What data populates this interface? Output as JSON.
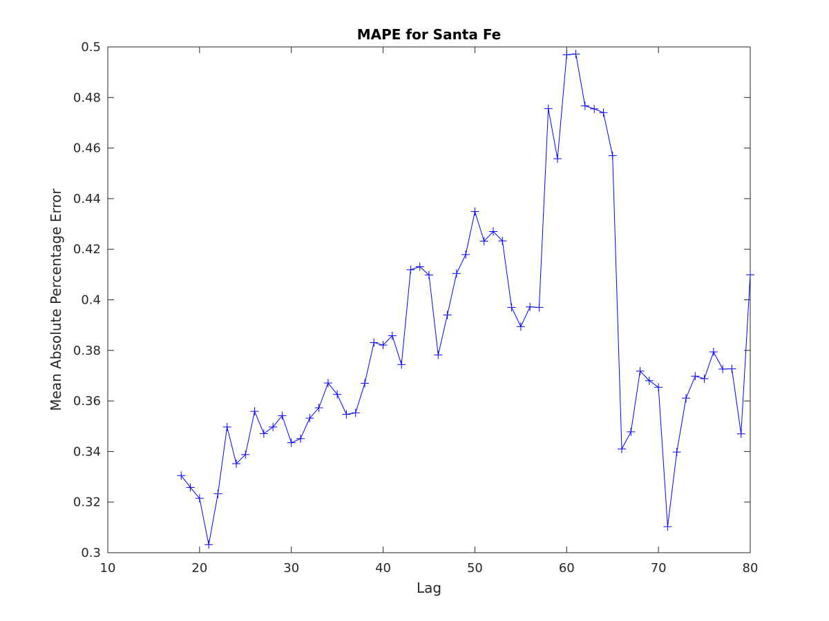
{
  "chart_data": {
    "type": "line",
    "title": "MAPE for Santa Fe",
    "xlabel": "Lag",
    "ylabel": "Mean Absolute Percentage Error",
    "xlim": [
      10,
      80
    ],
    "ylim": [
      0.3,
      0.5
    ],
    "xticks": [
      10,
      20,
      30,
      40,
      50,
      60,
      70,
      80
    ],
    "yticks": [
      0.3,
      0.32,
      0.34,
      0.36,
      0.38,
      0.4,
      0.42,
      0.44,
      0.46,
      0.48,
      0.5
    ],
    "ytick_labels": [
      "0.3",
      "0.32",
      "0.34",
      "0.36",
      "0.38",
      "0.4",
      "0.42",
      "0.44",
      "0.46",
      "0.48",
      "0.5"
    ],
    "grid": false,
    "marker": "+",
    "line_color": "#0000ff",
    "marker_color": "#0000ff",
    "series": [
      {
        "x": [
          18,
          19,
          20,
          21,
          22,
          23,
          24,
          25,
          26,
          27,
          28,
          29,
          30,
          31,
          32,
          33,
          34,
          35,
          36,
          37,
          38,
          39,
          40,
          41,
          42,
          43,
          44,
          45,
          46,
          47,
          48,
          49,
          50,
          51,
          52,
          53,
          54,
          55,
          56,
          57,
          58,
          59,
          60,
          61,
          62,
          63,
          64,
          65,
          66,
          67,
          68,
          69,
          70,
          71,
          72,
          73,
          74,
          75,
          76,
          77,
          78,
          79,
          80
        ],
        "values": [
          0.3305,
          0.3258,
          0.3215,
          0.3032,
          0.3233,
          0.3497,
          0.3352,
          0.3388,
          0.3559,
          0.3471,
          0.3497,
          0.3542,
          0.3435,
          0.3451,
          0.3532,
          0.3573,
          0.3671,
          0.3626,
          0.3547,
          0.3553,
          0.367,
          0.3831,
          0.3821,
          0.3858,
          0.3744,
          0.4119,
          0.4131,
          0.4098,
          0.3782,
          0.394,
          0.4104,
          0.4179,
          0.4349,
          0.4232,
          0.427,
          0.4233,
          0.397,
          0.3894,
          0.3972,
          0.397,
          0.4756,
          0.4558,
          0.4969,
          0.4972,
          0.4767,
          0.4755,
          0.474,
          0.457,
          0.341,
          0.3478,
          0.3718,
          0.368,
          0.3654,
          0.3103,
          0.3398,
          0.3611,
          0.3698,
          0.3688,
          0.3794,
          0.3726,
          0.3727,
          0.347,
          0.4099
        ]
      }
    ]
  }
}
